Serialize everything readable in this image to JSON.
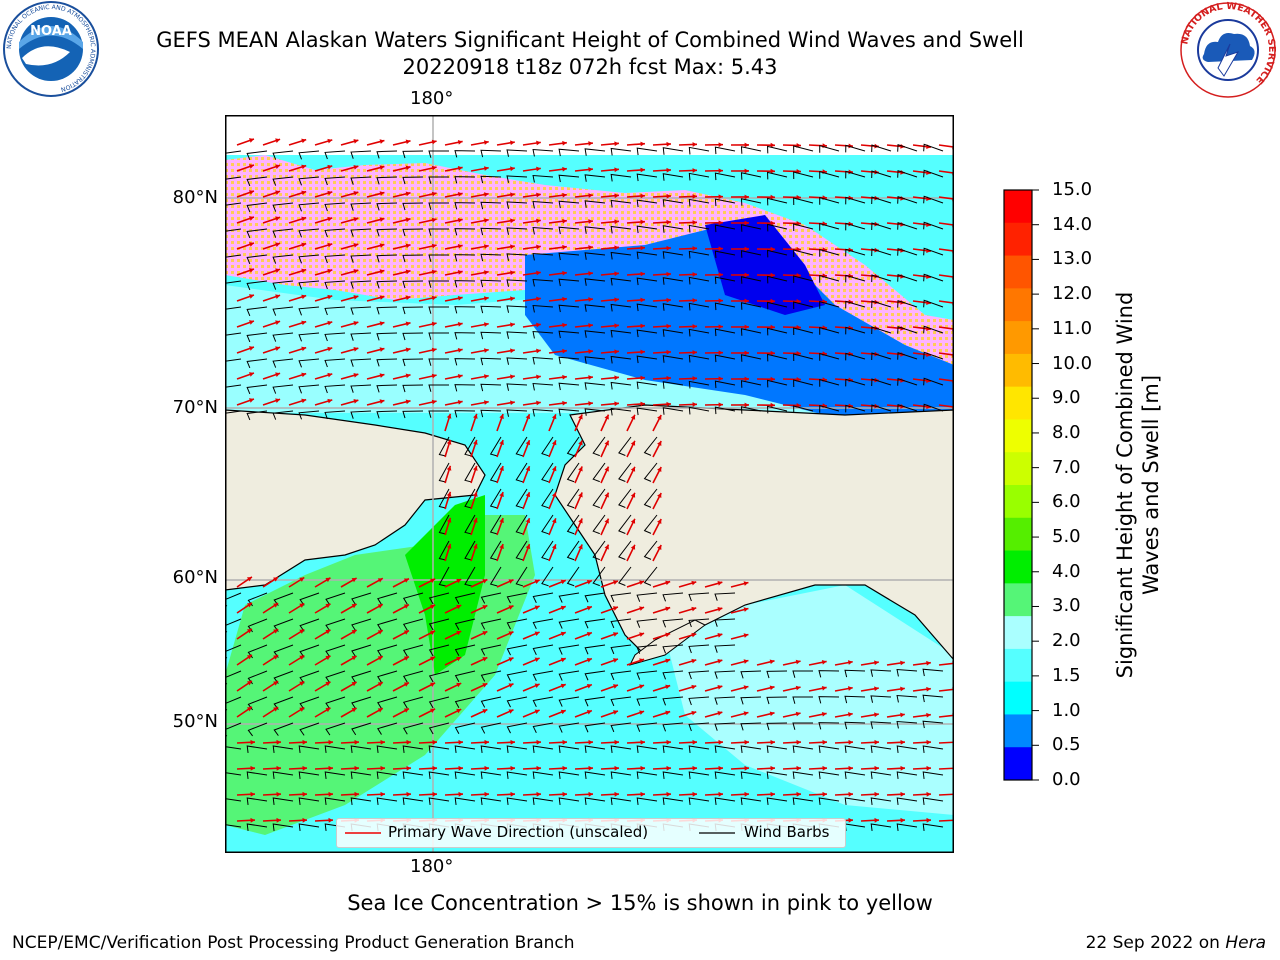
{
  "header": {
    "title_line1": "GEFS MEAN Alaskan Waters Significant Height of Combined Wind Waves and Swell",
    "title_line2": "20220918 t18z 072h fcst   Max: 5.43"
  },
  "logos": {
    "left": {
      "name": "NOAA",
      "ring_text": "NATIONAL OCEANIC AND ATMOSPHERIC ADMINISTRATION",
      "bottom_text": "U.S. DEPARTMENT OF COMMERCE"
    },
    "right": {
      "ring_text": "NATIONAL WEATHER SERVICE"
    }
  },
  "map": {
    "lon_label_top": "180°",
    "lon_label_bottom": "180°",
    "lat_labels": [
      "80°N",
      "70°N",
      "60°N",
      "50°N"
    ]
  },
  "legend": {
    "wave_label": "Primary Wave Direction (unscaled)",
    "wind_label": "Wind Barbs"
  },
  "colorbar": {
    "label": "Significant Height of Combined Wind Waves and Swell [m]",
    "ticks": [
      "15.0",
      "14.0",
      "13.0",
      "12.0",
      "11.0",
      "10.0",
      "9.0",
      "8.0",
      "7.0",
      "6.0",
      "5.0",
      "4.0",
      "3.0",
      "2.0",
      "1.5",
      "1.0",
      "0.5",
      "0.0"
    ],
    "colors": [
      "#ff0000",
      "#ff2200",
      "#ff5500",
      "#ff7700",
      "#ff9900",
      "#ffbb00",
      "#ffe600",
      "#eeff00",
      "#ccff00",
      "#99ff00",
      "#55ee00",
      "#00ee00",
      "#55f577",
      "#aaffff",
      "#55ffff",
      "#00ffff",
      "#0088ff",
      "#0000ff"
    ]
  },
  "footer": {
    "note": "Sea Ice Concentration > 15% is shown in pink to yellow",
    "left": "NCEP/EMC/Verification Post Processing Product Generation Branch",
    "date": "22 Sep 2022 on",
    "host": "Hera"
  }
}
